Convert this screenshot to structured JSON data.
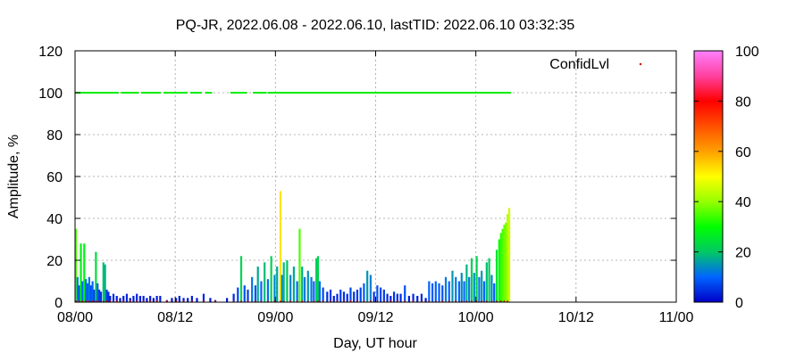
{
  "chart_data": {
    "type": "bar",
    "title": "PQ-JR, 2022.06.08 - 2022.06.10, lastTID: 2022.06.10 03:32:35",
    "xlabel": "Day, UT hour",
    "ylabel": "Amplitude, %",
    "xlim": [
      0,
      72
    ],
    "ylim": [
      0,
      120
    ],
    "x_ticks": [
      {
        "value": 0,
        "label": "08/00"
      },
      {
        "value": 12,
        "label": "08/12"
      },
      {
        "value": 24,
        "label": "09/00"
      },
      {
        "value": 36,
        "label": "09/12"
      },
      {
        "value": 48,
        "label": "10/00"
      },
      {
        "value": 60,
        "label": "10/12"
      },
      {
        "value": 72,
        "label": "11/00"
      }
    ],
    "y_ticks": [
      0,
      20,
      40,
      60,
      80,
      100,
      120
    ],
    "grid": true,
    "legend": {
      "position": "top-right",
      "entries": [
        "ConfidLvl"
      ]
    },
    "colorbar": {
      "range": [
        0,
        100
      ],
      "ticks": [
        0,
        20,
        40,
        60,
        80,
        100
      ],
      "colors": [
        "#0000c8",
        "#0064ff",
        "#00c864",
        "#00ff00",
        "#96ff00",
        "#ffff00",
        "#ffa000",
        "#ff5000",
        "#ff0000",
        "#ff40a0",
        "#ff80ff"
      ]
    },
    "series": [
      {
        "name": "amplitude",
        "kind": "bars",
        "points": [
          [
            0.1,
            35
          ],
          [
            0.3,
            12
          ],
          [
            0.5,
            8
          ],
          [
            0.7,
            28
          ],
          [
            0.9,
            10
          ],
          [
            1.1,
            28
          ],
          [
            1.3,
            11
          ],
          [
            1.5,
            9
          ],
          [
            1.7,
            12
          ],
          [
            1.9,
            8
          ],
          [
            2.1,
            10
          ],
          [
            2.3,
            6
          ],
          [
            2.5,
            24
          ],
          [
            2.7,
            9
          ],
          [
            2.9,
            6
          ],
          [
            3.1,
            5
          ],
          [
            3.4,
            19
          ],
          [
            3.6,
            18
          ],
          [
            3.8,
            6
          ],
          [
            4.0,
            5
          ],
          [
            4.2,
            3
          ],
          [
            4.6,
            4
          ],
          [
            5.0,
            3
          ],
          [
            5.4,
            2
          ],
          [
            5.8,
            3
          ],
          [
            6.2,
            4
          ],
          [
            6.6,
            2
          ],
          [
            7.0,
            3
          ],
          [
            7.4,
            4
          ],
          [
            7.8,
            3
          ],
          [
            8.2,
            3
          ],
          [
            8.6,
            2
          ],
          [
            9.0,
            3
          ],
          [
            9.4,
            2
          ],
          [
            9.8,
            3
          ],
          [
            10.2,
            3
          ],
          [
            11.0,
            1
          ],
          [
            11.6,
            2
          ],
          [
            12.1,
            2
          ],
          [
            12.5,
            3
          ],
          [
            13.0,
            2
          ],
          [
            13.5,
            2
          ],
          [
            14.0,
            3
          ],
          [
            14.6,
            2
          ],
          [
            15.4,
            4
          ],
          [
            16.2,
            2
          ],
          [
            16.8,
            1
          ],
          [
            18.2,
            2
          ],
          [
            19.0,
            4
          ],
          [
            19.5,
            7
          ],
          [
            19.9,
            22
          ],
          [
            20.3,
            8
          ],
          [
            20.7,
            6
          ],
          [
            21.2,
            12
          ],
          [
            21.6,
            8
          ],
          [
            21.9,
            17
          ],
          [
            22.3,
            10
          ],
          [
            22.7,
            19
          ],
          [
            23.1,
            11
          ],
          [
            23.5,
            22
          ],
          [
            23.9,
            13
          ],
          [
            24.2,
            17
          ],
          [
            24.6,
            53
          ],
          [
            24.8,
            13
          ],
          [
            25.0,
            19
          ],
          [
            25.4,
            20
          ],
          [
            25.8,
            13
          ],
          [
            26.2,
            17
          ],
          [
            26.6,
            10
          ],
          [
            26.9,
            35
          ],
          [
            27.2,
            17
          ],
          [
            27.5,
            12
          ],
          [
            27.9,
            15
          ],
          [
            28.3,
            12
          ],
          [
            28.6,
            10
          ],
          [
            28.9,
            21
          ],
          [
            29.1,
            22
          ],
          [
            29.3,
            10
          ],
          [
            29.7,
            7
          ],
          [
            30.2,
            5
          ],
          [
            30.6,
            6
          ],
          [
            31.0,
            3
          ],
          [
            31.4,
            4
          ],
          [
            31.8,
            6
          ],
          [
            32.2,
            5
          ],
          [
            32.6,
            4
          ],
          [
            33.0,
            7
          ],
          [
            33.4,
            5
          ],
          [
            33.8,
            6
          ],
          [
            34.2,
            7
          ],
          [
            34.6,
            9
          ],
          [
            35.0,
            15
          ],
          [
            35.4,
            13
          ],
          [
            35.8,
            5
          ],
          [
            36.2,
            8
          ],
          [
            36.6,
            7
          ],
          [
            37.0,
            6
          ],
          [
            37.4,
            4
          ],
          [
            37.8,
            3
          ],
          [
            38.2,
            5
          ],
          [
            38.6,
            4
          ],
          [
            39.0,
            4
          ],
          [
            39.5,
            8
          ],
          [
            40.0,
            3
          ],
          [
            40.5,
            4
          ],
          [
            41.0,
            3
          ],
          [
            41.5,
            4
          ],
          [
            42.0,
            2
          ],
          [
            42.4,
            10
          ],
          [
            42.8,
            9
          ],
          [
            43.2,
            10
          ],
          [
            43.6,
            9
          ],
          [
            44.0,
            8
          ],
          [
            44.4,
            12
          ],
          [
            44.8,
            10
          ],
          [
            45.2,
            15
          ],
          [
            45.6,
            12
          ],
          [
            46.0,
            10
          ],
          [
            46.3,
            14
          ],
          [
            46.6,
            10
          ],
          [
            46.9,
            18
          ],
          [
            47.2,
            12
          ],
          [
            47.5,
            21
          ],
          [
            47.8,
            14
          ],
          [
            48.1,
            22
          ],
          [
            48.4,
            12
          ],
          [
            48.7,
            15
          ],
          [
            49.0,
            10
          ],
          [
            49.3,
            19
          ],
          [
            49.6,
            21
          ],
          [
            49.9,
            13
          ],
          [
            50.2,
            9
          ],
          [
            50.5,
            25
          ],
          [
            50.8,
            30
          ],
          [
            51.0,
            33
          ],
          [
            51.2,
            35
          ],
          [
            51.4,
            37
          ],
          [
            51.6,
            38
          ],
          [
            51.8,
            42
          ],
          [
            52.0,
            45
          ]
        ]
      },
      {
        "name": "ConfidLvl",
        "kind": "points",
        "value": 100,
        "ranges": [
          [
            0.1,
            5.2
          ],
          [
            5.6,
            7.6
          ],
          [
            8.0,
            10.2
          ],
          [
            10.7,
            13.4
          ],
          [
            13.9,
            15.1
          ],
          [
            15.7,
            16.4
          ],
          [
            18.7,
            20.6
          ],
          [
            21.4,
            22.9
          ],
          [
            23.2,
            52.2
          ]
        ]
      }
    ]
  }
}
